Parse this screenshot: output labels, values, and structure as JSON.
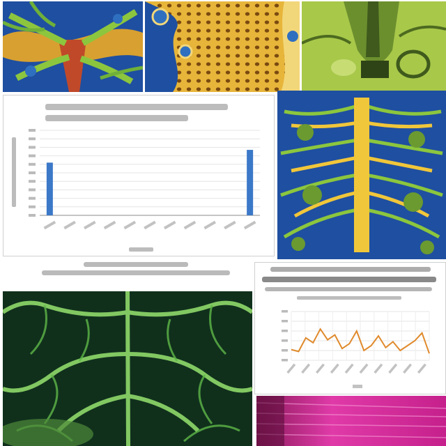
{
  "chart_data": [
    {
      "type": "bar",
      "title": "",
      "subtitle": "",
      "xlabel": "",
      "ylabel": "",
      "ylim": [
        0,
        100
      ],
      "categories": [
        "",
        "",
        "",
        "",
        "",
        "",
        "",
        "",
        "",
        "",
        ""
      ],
      "values": [
        62,
        0,
        0,
        0,
        0,
        0,
        0,
        0,
        0,
        0,
        77
      ],
      "grid": true,
      "bar_color": "#3b78c8"
    },
    {
      "type": "line",
      "title": "",
      "ylim": [
        0,
        100
      ],
      "x": [
        1,
        2,
        3,
        4,
        5,
        6,
        7,
        8,
        9,
        10,
        11,
        12,
        13,
        14,
        15,
        16,
        17,
        18,
        19,
        20
      ],
      "series": [
        {
          "values": [
            22,
            18,
            46,
            36,
            64,
            42,
            52,
            24,
            34,
            60,
            20,
            30,
            50,
            26,
            38,
            20,
            30,
            40,
            56,
            14
          ]
        }
      ],
      "grid": true,
      "line_color": "#e08a2c"
    }
  ],
  "captions": {
    "bar_chart_caption": ""
  },
  "colors": {
    "tissue_blue": "#1f4fa0",
    "tissue_green": "#7fb43a",
    "tissue_yellow": "#e7b53a",
    "tissue_magenta": "#c5208c"
  }
}
